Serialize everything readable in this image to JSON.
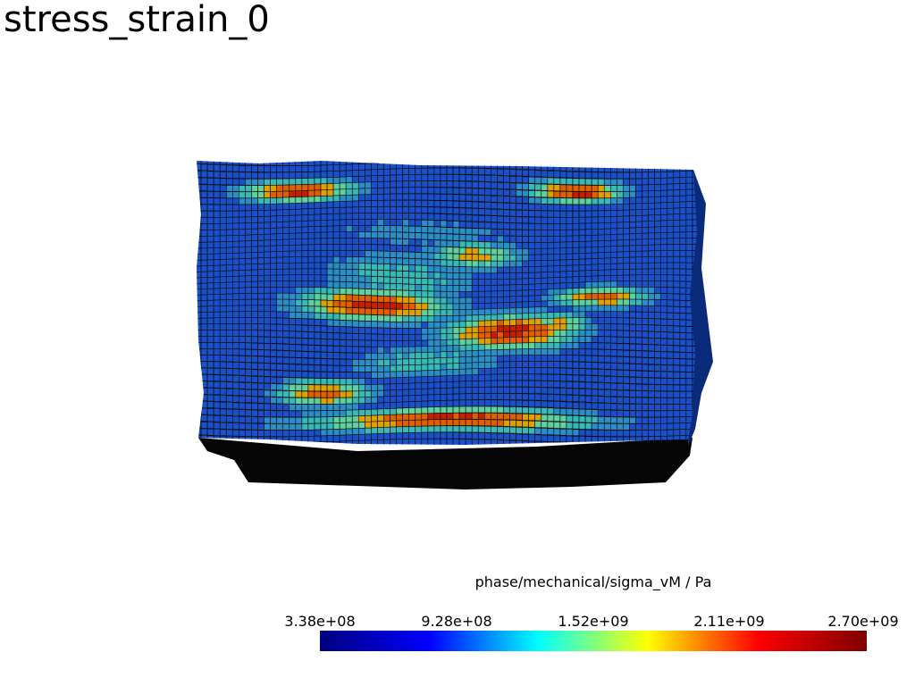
{
  "title": "stress_strain_0",
  "scalar_bar": {
    "title": "phase/mechanical/sigma_vM / Pa",
    "ticks": [
      "3.38e+08",
      "9.28e+08",
      "1.52e+09",
      "2.11e+09",
      "2.70e+09"
    ],
    "colormap": [
      "#00007f",
      "#0000ff",
      "#00ffff",
      "#ffff00",
      "#ff0000",
      "#7f0000"
    ]
  },
  "mesh": {
    "edge_color": "#000000",
    "palette": [
      "#0b2fa6",
      "#1a50c8",
      "#2a8fc8",
      "#39b8b8",
      "#5fd0a0",
      "#e0a000",
      "#e06000",
      "#c81e00"
    ]
  }
}
